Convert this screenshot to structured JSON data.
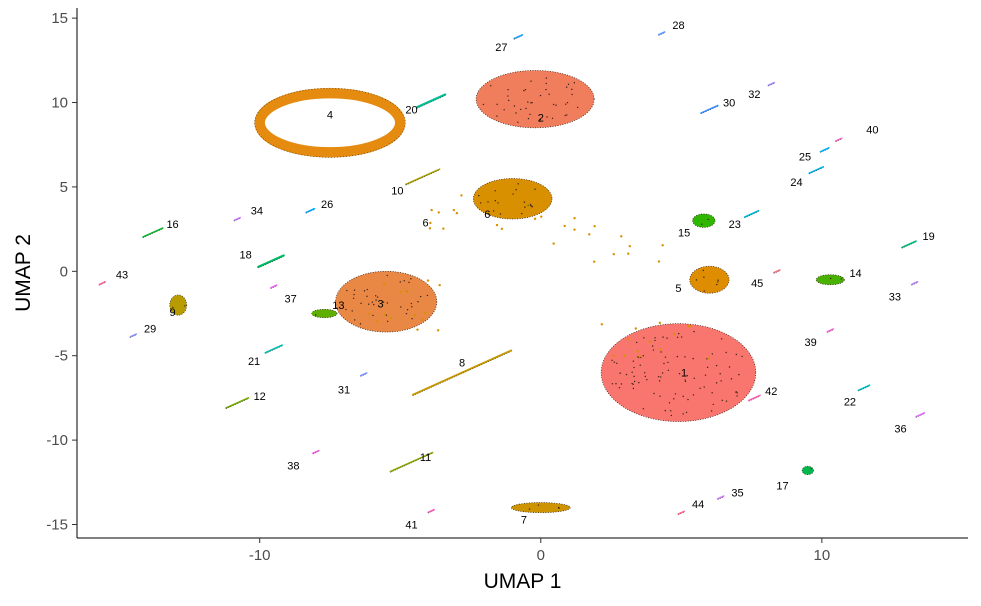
{
  "chart_data": {
    "type": "scatter",
    "title": "",
    "xlabel": "UMAP 1",
    "ylabel": "UMAP 2",
    "xlim": [
      -16.5,
      15.2
    ],
    "ylim": [
      -15.8,
      15.6
    ],
    "xticks": [
      -10,
      0,
      10
    ],
    "yticks": [
      -15,
      -10,
      -5,
      0,
      5,
      10,
      15
    ],
    "xtick_labels": [
      "-10",
      "0",
      "10"
    ],
    "ytick_labels": [
      "-15",
      "-10",
      "-5",
      "0",
      "5",
      "10",
      "15"
    ],
    "grid": false,
    "legend": "none",
    "clusters": [
      {
        "label": "1",
        "x": 4.9,
        "y": -6.0,
        "color": "#F8766D",
        "shape": "blob",
        "w": 5.5,
        "h": 5.8
      },
      {
        "label": "2",
        "x": -0.2,
        "y": 10.2,
        "color": "#F07E5C",
        "shape": "blob",
        "w": 4.2,
        "h": 3.4
      },
      {
        "label": "3",
        "x": -5.5,
        "y": -1.8,
        "color": "#E98745",
        "shape": "blob",
        "w": 3.6,
        "h": 3.6
      },
      {
        "label": "4",
        "x": -7.5,
        "y": 8.8,
        "color": "#E48B10",
        "shape": "ring",
        "w": 5.0,
        "h": 3.5
      },
      {
        "label": "5",
        "x": 6.0,
        "y": -0.5,
        "color": "#DE8C00",
        "shape": "blob",
        "w": 1.4,
        "h": 1.6
      },
      {
        "label": "6",
        "x": -1.0,
        "y": 4.3,
        "color": "#D89000",
        "shape": "blob",
        "w": 2.8,
        "h": 2.4
      },
      {
        "label": "7",
        "x": 0.0,
        "y": -14.0,
        "color": "#CE9400",
        "shape": "blob",
        "w": 2.1,
        "h": 0.6
      },
      {
        "label": "8",
        "x": -2.8,
        "y": -6.0,
        "color": "#C89A00",
        "shape": "stripe",
        "x2": -1.2,
        "y2": -5.0,
        "w": 3.5,
        "h": 0.5
      },
      {
        "label": "9",
        "x": -12.9,
        "y": -2.0,
        "color": "#B99C00",
        "shape": "blob",
        "w": 0.6,
        "h": 1.2
      },
      {
        "label": "10",
        "x": -4.2,
        "y": 5.6,
        "color": "#A8A000",
        "shape": "stripe",
        "w": 1.2,
        "h": 0.4
      },
      {
        "label": "11",
        "x": -4.6,
        "y": -11.3,
        "color": "#8AA800",
        "shape": "stripe",
        "w": 1.5,
        "h": 0.3
      },
      {
        "label": "12",
        "x": -10.8,
        "y": -7.8,
        "color": "#73AB00",
        "shape": "stripe",
        "w": 0.8,
        "h": 0.3
      },
      {
        "label": "13",
        "x": -7.7,
        "y": -2.5,
        "color": "#5EAF00",
        "shape": "blob",
        "w": 0.9,
        "h": 0.5
      },
      {
        "label": "14",
        "x": 10.3,
        "y": -0.5,
        "color": "#49B100",
        "shape": "blob",
        "w": 1.0,
        "h": 0.6
      },
      {
        "label": "15",
        "x": 5.8,
        "y": 3.0,
        "color": "#2FB600",
        "shape": "blob",
        "w": 0.8,
        "h": 0.8
      },
      {
        "label": "16",
        "x": -13.8,
        "y": 2.3,
        "color": "#00B52B",
        "shape": "stripe",
        "w": 0.7,
        "h": 0.3
      },
      {
        "label": "17",
        "x": 9.5,
        "y": -11.8,
        "color": "#00B84C",
        "shape": "blob",
        "w": 0.4,
        "h": 0.5
      },
      {
        "label": "18",
        "x": -9.6,
        "y": 0.6,
        "color": "#00BA65",
        "shape": "stripe",
        "w": 0.9,
        "h": 0.6
      },
      {
        "label": "19",
        "x": 13.1,
        "y": 1.6,
        "color": "#00BC80",
        "shape": "stripe",
        "w": 0.5,
        "h": 0.3
      },
      {
        "label": "20",
        "x": -3.9,
        "y": 10.1,
        "color": "#00BF96",
        "shape": "stripe",
        "w": 1.0,
        "h": 0.6
      },
      {
        "label": "21",
        "x": -9.5,
        "y": -4.6,
        "color": "#00C0AF",
        "shape": "stripe",
        "w": 0.6,
        "h": 0.2
      },
      {
        "label": "22",
        "x": 11.5,
        "y": -6.9,
        "color": "#00BFC4",
        "shape": "stripe",
        "w": 0.4,
        "h": 0.2
      },
      {
        "label": "23",
        "x": 7.5,
        "y": 3.4,
        "color": "#00BBDA",
        "shape": "stripe",
        "w": 0.5,
        "h": 0.3
      },
      {
        "label": "24",
        "x": 9.8,
        "y": 6.0,
        "color": "#00B6EB",
        "shape": "stripe",
        "w": 0.5,
        "h": 0.4
      },
      {
        "label": "25",
        "x": 10.1,
        "y": 7.2,
        "color": "#00B0F6",
        "shape": "stripe",
        "w": 0.3,
        "h": 0.3
      },
      {
        "label": "26",
        "x": -8.2,
        "y": 3.6,
        "color": "#00A9FF",
        "shape": "stripe",
        "w": 0.3,
        "h": 0.2
      },
      {
        "label": "27",
        "x": -0.8,
        "y": 13.9,
        "color": "#1AA0FF",
        "shape": "stripe",
        "w": 0.3,
        "h": 0.2
      },
      {
        "label": "28",
        "x": 4.3,
        "y": 14.1,
        "color": "#5E99FF",
        "shape": "stripe",
        "w": 0.2,
        "h": 0.2
      },
      {
        "label": "29",
        "x": -14.5,
        "y": -3.8,
        "color": "#8B93FF",
        "shape": "stripe",
        "w": 0.2,
        "h": 0.2
      },
      {
        "label": "30",
        "x": 6.0,
        "y": 9.6,
        "color": "#3C91FF",
        "shape": "stripe",
        "w": 0.6,
        "h": 0.2
      },
      {
        "label": "31",
        "x": -6.3,
        "y": -6.1,
        "color": "#7D95FF",
        "shape": "stripe",
        "w": 0.2,
        "h": 0.2
      },
      {
        "label": "32",
        "x": 8.2,
        "y": 11.1,
        "color": "#A58AFF",
        "shape": "stripe",
        "w": 0.2,
        "h": 0.2
      },
      {
        "label": "33",
        "x": 13.3,
        "y": -0.7,
        "color": "#B983FF",
        "shape": "stripe",
        "w": 0.2,
        "h": 0.2
      },
      {
        "label": "34",
        "x": -10.8,
        "y": 3.1,
        "color": "#C77CFF",
        "shape": "stripe",
        "w": 0.2,
        "h": 0.2
      },
      {
        "label": "35",
        "x": 6.4,
        "y": -13.4,
        "color": "#D575FE",
        "shape": "stripe",
        "w": 0.2,
        "h": 0.2
      },
      {
        "label": "36",
        "x": 13.5,
        "y": -8.5,
        "color": "#E06FF8",
        "shape": "stripe",
        "w": 0.3,
        "h": 0.2
      },
      {
        "label": "37",
        "x": -9.5,
        "y": -0.9,
        "color": "#EA69F0",
        "shape": "stripe",
        "w": 0.2,
        "h": 0.2
      },
      {
        "label": "38",
        "x": -8.0,
        "y": -10.7,
        "color": "#F265E6",
        "shape": "stripe",
        "w": 0.2,
        "h": 0.2
      },
      {
        "label": "39",
        "x": 10.3,
        "y": -3.5,
        "color": "#F863DA",
        "shape": "stripe",
        "w": 0.15,
        "h": 0.15
      },
      {
        "label": "40",
        "x": 10.6,
        "y": 7.8,
        "color": "#FC61CF",
        "shape": "stripe",
        "w": 0.2,
        "h": 0.2
      },
      {
        "label": "41",
        "x": -3.9,
        "y": -14.2,
        "color": "#FF61C3",
        "shape": "stripe",
        "w": 0.2,
        "h": 0.2
      },
      {
        "label": "42",
        "x": 7.6,
        "y": -7.5,
        "color": "#FF63B6",
        "shape": "stripe",
        "w": 0.4,
        "h": 0.2
      },
      {
        "label": "43",
        "x": -15.6,
        "y": -0.7,
        "color": "#FF67A4",
        "shape": "stripe",
        "w": 0.15,
        "h": 0.15
      },
      {
        "label": "44",
        "x": 5.0,
        "y": -14.3,
        "color": "#FF6C91",
        "shape": "stripe",
        "w": 0.15,
        "h": 0.15
      },
      {
        "label": "45",
        "x": 8.4,
        "y": 0.0,
        "color": "#FC717F",
        "shape": "stripe",
        "w": 0.15,
        "h": 0.15
      }
    ],
    "labels": [
      {
        "text": "1",
        "x": 5.1,
        "y": -6.0
      },
      {
        "text": "2",
        "x": 0.0,
        "y": 9.1
      },
      {
        "text": "3",
        "x": -5.7,
        "y": -1.9
      },
      {
        "text": "4",
        "x": -7.5,
        "y": 9.3
      },
      {
        "text": "5",
        "x": 4.9,
        "y": -1.0
      },
      {
        "text": "6",
        "x": -4.1,
        "y": 2.9
      },
      {
        "text": "6",
        "x": -1.9,
        "y": 3.4
      },
      {
        "text": "7",
        "x": -0.6,
        "y": -14.7
      },
      {
        "text": "8",
        "x": -2.8,
        "y": -5.4
      },
      {
        "text": "9",
        "x": -13.1,
        "y": -2.4
      },
      {
        "text": "10",
        "x": -5.1,
        "y": 4.8
      },
      {
        "text": "11",
        "x": -4.1,
        "y": -11.0
      },
      {
        "text": "12",
        "x": -10.0,
        "y": -7.4
      },
      {
        "text": "13",
        "x": -7.2,
        "y": -2.0
      },
      {
        "text": "14",
        "x": 11.2,
        "y": -0.1
      },
      {
        "text": "15",
        "x": 5.1,
        "y": 2.3
      },
      {
        "text": "16",
        "x": -13.1,
        "y": 2.8
      },
      {
        "text": "17",
        "x": 8.6,
        "y": -12.7
      },
      {
        "text": "18",
        "x": -10.5,
        "y": 1.0
      },
      {
        "text": "19",
        "x": 13.8,
        "y": 2.1
      },
      {
        "text": "20",
        "x": -4.6,
        "y": 9.6
      },
      {
        "text": "21",
        "x": -10.2,
        "y": -5.3
      },
      {
        "text": "22",
        "x": 11.0,
        "y": -7.7
      },
      {
        "text": "23",
        "x": 6.9,
        "y": 2.8
      },
      {
        "text": "24",
        "x": 9.1,
        "y": 5.3
      },
      {
        "text": "25",
        "x": 9.4,
        "y": 6.8
      },
      {
        "text": "26",
        "x": -7.6,
        "y": 4.0
      },
      {
        "text": "27",
        "x": -1.4,
        "y": 13.3
      },
      {
        "text": "28",
        "x": 4.9,
        "y": 14.6
      },
      {
        "text": "29",
        "x": -13.9,
        "y": -3.4
      },
      {
        "text": "30",
        "x": 6.7,
        "y": 10.0
      },
      {
        "text": "31",
        "x": -7.0,
        "y": -7.0
      },
      {
        "text": "32",
        "x": 7.6,
        "y": 10.5
      },
      {
        "text": "33",
        "x": 12.6,
        "y": -1.5
      },
      {
        "text": "34",
        "x": -10.1,
        "y": 3.6
      },
      {
        "text": "35",
        "x": 7.0,
        "y": -13.1
      },
      {
        "text": "36",
        "x": 12.8,
        "y": -9.3
      },
      {
        "text": "37",
        "x": -8.9,
        "y": -1.6
      },
      {
        "text": "38",
        "x": -8.8,
        "y": -11.5
      },
      {
        "text": "39",
        "x": 9.6,
        "y": -4.2
      },
      {
        "text": "40",
        "x": 11.8,
        "y": 8.4
      },
      {
        "text": "41",
        "x": -4.6,
        "y": -15.0
      },
      {
        "text": "42",
        "x": 8.2,
        "y": -7.1
      },
      {
        "text": "43",
        "x": -14.9,
        "y": -0.2
      },
      {
        "text": "44",
        "x": 5.6,
        "y": -13.8
      },
      {
        "text": "45",
        "x": 7.7,
        "y": -0.7
      }
    ]
  }
}
